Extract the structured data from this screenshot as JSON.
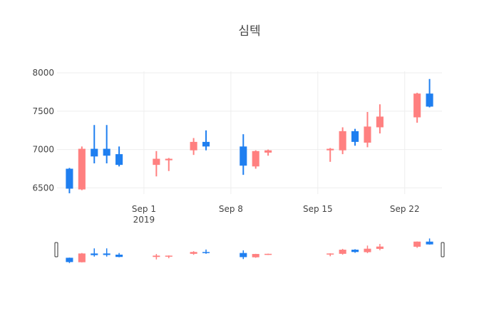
{
  "chart_data": {
    "type": "candlestick",
    "title": "심텍",
    "colors": {
      "increasing": "#1f7ff0",
      "decreasing": "#ff8080",
      "grid": "#eeeeee"
    },
    "y_ticks": [
      "6500",
      "7000",
      "7500",
      "8000"
    ],
    "x_ticks": [
      {
        "date": "2019-09-01",
        "label": "Sep 1",
        "sublabel": "2019"
      },
      {
        "date": "2019-09-08",
        "label": "Sep 8",
        "sublabel": ""
      },
      {
        "date": "2019-09-15",
        "label": "Sep 15",
        "sublabel": ""
      },
      {
        "date": "2019-09-22",
        "label": "Sep 22",
        "sublabel": ""
      }
    ],
    "xlim": [
      "2019-08-25",
      "2019-09-25"
    ],
    "ylim": [
      6420,
      8020
    ],
    "candles": [
      {
        "date": "2019-08-26",
        "open": 6490,
        "high": 6760,
        "low": 6430,
        "close": 6750
      },
      {
        "date": "2019-08-27",
        "open": 7010,
        "high": 7040,
        "low": 6470,
        "close": 6480
      },
      {
        "date": "2019-08-28",
        "open": 6910,
        "high": 7320,
        "low": 6820,
        "close": 7010
      },
      {
        "date": "2019-08-29",
        "open": 6920,
        "high": 7320,
        "low": 6820,
        "close": 7010
      },
      {
        "date": "2019-08-30",
        "open": 6800,
        "high": 7040,
        "low": 6780,
        "close": 6940
      },
      {
        "date": "2019-09-02",
        "open": 6880,
        "high": 6980,
        "low": 6650,
        "close": 6800
      },
      {
        "date": "2019-09-03",
        "open": 6880,
        "high": 6890,
        "low": 6720,
        "close": 6860
      },
      {
        "date": "2019-09-05",
        "open": 7100,
        "high": 7150,
        "low": 6930,
        "close": 6990
      },
      {
        "date": "2019-09-06",
        "open": 7040,
        "high": 7250,
        "low": 6990,
        "close": 7100
      },
      {
        "date": "2019-09-09",
        "open": 6790,
        "high": 7200,
        "low": 6670,
        "close": 7040
      },
      {
        "date": "2019-09-10",
        "open": 6980,
        "high": 6990,
        "low": 6750,
        "close": 6780
      },
      {
        "date": "2019-09-11",
        "open": 6990,
        "high": 7000,
        "low": 6920,
        "close": 6960
      },
      {
        "date": "2019-09-16",
        "open": 7010,
        "high": 7020,
        "low": 6840,
        "close": 6990
      },
      {
        "date": "2019-09-17",
        "open": 7240,
        "high": 7290,
        "low": 6940,
        "close": 6990
      },
      {
        "date": "2019-09-18",
        "open": 7100,
        "high": 7270,
        "low": 7050,
        "close": 7240
      },
      {
        "date": "2019-09-19",
        "open": 7300,
        "high": 7490,
        "low": 7030,
        "close": 7090
      },
      {
        "date": "2019-09-20",
        "open": 7430,
        "high": 7590,
        "low": 7210,
        "close": 7290
      },
      {
        "date": "2019-09-23",
        "open": 7730,
        "high": 7740,
        "low": 7350,
        "close": 7420
      },
      {
        "date": "2019-09-24",
        "open": 7560,
        "high": 7920,
        "low": 7550,
        "close": 7730
      }
    ]
  }
}
